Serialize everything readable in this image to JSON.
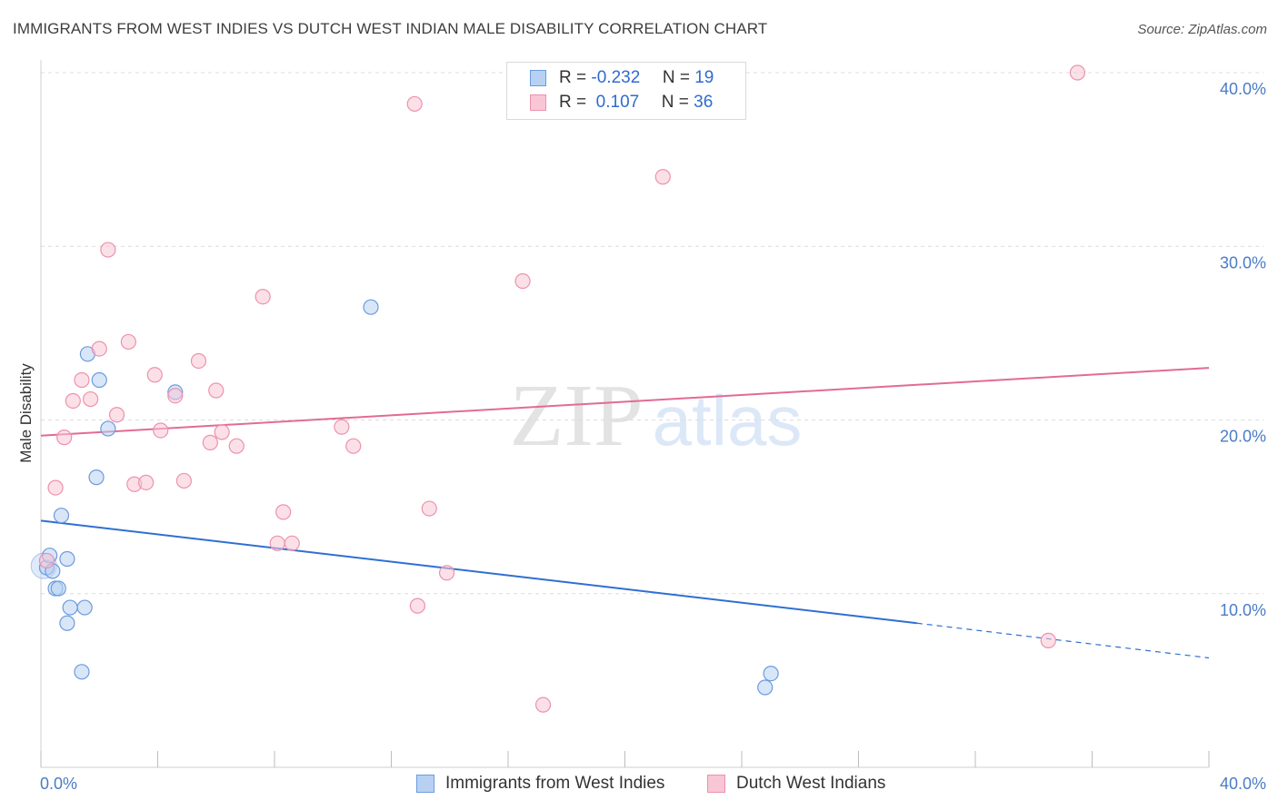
{
  "header": {
    "title": "IMMIGRANTS FROM WEST INDIES VS DUTCH WEST INDIAN MALE DISABILITY CORRELATION CHART",
    "source": "Source: ZipAtlas.com"
  },
  "watermark": {
    "zip": "ZIP",
    "atlas": "atlas"
  },
  "legend": {
    "rows": [
      {
        "r_label": "R =",
        "r_value": "-0.232",
        "n_label": "N =",
        "n_value": "19",
        "fill": "#b8d1f3",
        "stroke": "#6b9be0"
      },
      {
        "r_label": "R =",
        "r_value": " 0.107",
        "n_label": "N =",
        "n_value": "36",
        "fill": "#f9c6d6",
        "stroke": "#ec92ad"
      }
    ]
  },
  "bottom_legend": {
    "series_a": "Immigrants from West Indies",
    "series_b": "Dutch West Indians"
  },
  "colors": {
    "blue_fill": "#b8d1f3",
    "blue_stroke": "#6b9be0",
    "blue_line": "#2f6fd2",
    "pink_fill": "#f9c6d6",
    "pink_stroke": "#ec92ad",
    "pink_line": "#e26b94",
    "tick_text": "#4a7cc7"
  },
  "chart_data": {
    "type": "scatter",
    "title": "IMMIGRANTS FROM WEST INDIES VS DUTCH WEST INDIAN MALE DISABILITY CORRELATION CHART",
    "xlabel": "",
    "ylabel": "Male Disability",
    "xlim": [
      0,
      40
    ],
    "ylim": [
      0,
      40
    ],
    "x_tick_labels": [
      "0.0%",
      "40.0%"
    ],
    "y_tick_labels": [
      "10.0%",
      "20.0%",
      "30.0%",
      "40.0%"
    ],
    "y_ticks": [
      10,
      20,
      30,
      40
    ],
    "grid": true,
    "legend_position": "top-center",
    "series": [
      {
        "name": "Immigrants from West Indies",
        "color": "#6b9be0",
        "points": [
          [
            0.2,
            11.5
          ],
          [
            0.3,
            12.2
          ],
          [
            0.4,
            11.3
          ],
          [
            0.5,
            10.3
          ],
          [
            0.6,
            10.3
          ],
          [
            0.7,
            14.5
          ],
          [
            0.9,
            12.0
          ],
          [
            0.9,
            8.3
          ],
          [
            1.0,
            9.2
          ],
          [
            1.4,
            5.5
          ],
          [
            1.5,
            9.2
          ],
          [
            1.6,
            23.8
          ],
          [
            1.9,
            16.7
          ],
          [
            2.0,
            22.3
          ],
          [
            2.3,
            19.5
          ],
          [
            4.6,
            21.6
          ],
          [
            11.3,
            26.5
          ],
          [
            24.8,
            4.6
          ],
          [
            25.0,
            5.4
          ]
        ],
        "trend": {
          "x0": 0,
          "y0": 14.2,
          "x1": 30,
          "y1": 8.3,
          "dashed_to_x": 40,
          "dashed_to_y": 6.3
        }
      },
      {
        "name": "Dutch West Indians",
        "color": "#ec92ad",
        "points": [
          [
            0.2,
            11.9
          ],
          [
            0.5,
            16.1
          ],
          [
            0.8,
            19.0
          ],
          [
            1.1,
            21.1
          ],
          [
            1.4,
            22.3
          ],
          [
            1.7,
            21.2
          ],
          [
            2.0,
            24.1
          ],
          [
            2.3,
            29.8
          ],
          [
            2.6,
            20.3
          ],
          [
            3.0,
            24.5
          ],
          [
            3.2,
            16.3
          ],
          [
            3.6,
            16.4
          ],
          [
            3.9,
            22.6
          ],
          [
            4.1,
            19.4
          ],
          [
            4.6,
            21.4
          ],
          [
            4.9,
            16.5
          ],
          [
            5.4,
            23.4
          ],
          [
            5.8,
            18.7
          ],
          [
            6.0,
            21.7
          ],
          [
            6.2,
            19.3
          ],
          [
            6.7,
            18.5
          ],
          [
            7.6,
            27.1
          ],
          [
            8.1,
            12.9
          ],
          [
            8.3,
            14.7
          ],
          [
            8.6,
            12.9
          ],
          [
            10.3,
            19.6
          ],
          [
            10.7,
            18.5
          ],
          [
            12.8,
            38.2
          ],
          [
            12.9,
            9.3
          ],
          [
            13.3,
            14.9
          ],
          [
            13.9,
            11.2
          ],
          [
            16.5,
            28.0
          ],
          [
            17.2,
            3.6
          ],
          [
            21.3,
            34.0
          ],
          [
            34.5,
            7.3
          ],
          [
            35.5,
            40.0
          ]
        ],
        "trend": {
          "x0": 0,
          "y0": 19.1,
          "x1": 40,
          "y1": 23.0
        }
      }
    ]
  }
}
